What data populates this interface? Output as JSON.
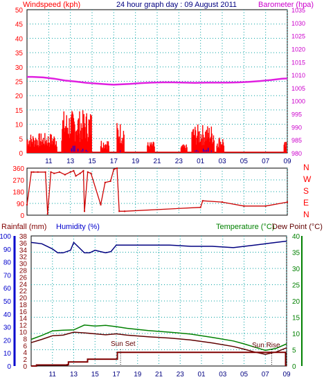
{
  "title": "24 hour graph day : 09 August 2011",
  "colors": {
    "wind": "#ff0000",
    "gust_avg": "#0000ff",
    "gust_green": "#00a000",
    "barometer": "#e020e0",
    "direction": "#cc0000",
    "rain": "#800000",
    "humidity": "#000080",
    "temperature": "#008000",
    "dewpoint": "#600000",
    "grid": "#00a0a0",
    "axis_left": "#ff0000",
    "axis_right": "#cc00cc",
    "humidity_axis": "#0000cc",
    "temp_axis": "#008000"
  },
  "chart_data": [
    {
      "type": "line",
      "name": "wind_barometer",
      "left_label": "Windspeed (kph)",
      "right_label": "Barometer (hpa)",
      "x_ticks": [
        "11",
        "13",
        "15",
        "17",
        "19",
        "21",
        "23",
        "01",
        "03",
        "05",
        "07",
        "09"
      ],
      "left_ticks": [
        "0",
        "5",
        "10",
        "15",
        "20",
        "25",
        "30",
        "35",
        "40",
        "45",
        "50"
      ],
      "right_ticks": [
        "980",
        "985",
        "990",
        "995",
        "1000",
        "1005",
        "1010",
        "1015",
        "1020",
        "1025",
        "1030",
        "1035"
      ],
      "left_range": [
        0,
        50
      ],
      "right_range": [
        980,
        1035
      ],
      "barometer": {
        "x": [
          9.0,
          9.5,
          10.5,
          11.5,
          12.5,
          13.5,
          14.5,
          15.5,
          16.5,
          17.0,
          17.5,
          18.5,
          19.5,
          20.5,
          21.5,
          22.5,
          23.5,
          24.5,
          25.5,
          26.5,
          27.5,
          28.5,
          29.5,
          30.5,
          31.5,
          32.5,
          33.0
        ],
        "values": [
          1009.2,
          1009.2,
          1009.0,
          1008.5,
          1007.8,
          1007.4,
          1006.9,
          1006.6,
          1006.3,
          1006.2,
          1006.3,
          1006.5,
          1006.8,
          1007.0,
          1007.1,
          1007.1,
          1007.0,
          1006.9,
          1007.0,
          1007.0,
          1007.0,
          1007.1,
          1007.3,
          1007.6,
          1008.0,
          1008.5,
          1008.6
        ]
      },
      "wind_bursts": [
        {
          "x": [
            9.0,
            11.8
          ],
          "max": 7
        },
        {
          "x": [
            12.2,
            15.0
          ],
          "max": 15
        },
        {
          "x": [
            15.8,
            16.6
          ],
          "max": 5
        },
        {
          "x": [
            17.3,
            18.0
          ],
          "max": 11
        },
        {
          "x": [
            20.1,
            20.8
          ],
          "max": 4
        },
        {
          "x": [
            23.2,
            23.8
          ],
          "max": 3
        },
        {
          "x": [
            24.2,
            26.3
          ],
          "max": 10
        },
        {
          "x": [
            26.5,
            27.2
          ],
          "max": 6
        },
        {
          "x": [
            32.7,
            32.9
          ],
          "max": 4
        }
      ]
    },
    {
      "type": "scatter",
      "name": "wind_direction",
      "left_ticks": [
        "0",
        "90",
        "180",
        "270",
        "360"
      ],
      "left_range": [
        0,
        360
      ],
      "right_letters": [
        "N",
        "W",
        "S",
        "E",
        "N"
      ],
      "x": [
        9.0,
        9.4,
        9.6,
        10.0,
        10.7,
        10.9,
        11.2,
        11.5,
        12.0,
        12.5,
        13.0,
        13.3,
        13.5,
        13.9,
        14.2,
        14.3,
        14.6,
        14.9,
        15.8,
        16.2,
        16.7,
        17.0,
        17.3,
        17.5,
        18.0,
        25.0,
        25.2,
        27.0,
        29.0,
        31.0,
        33.0
      ],
      "values": [
        80,
        330,
        330,
        330,
        330,
        10,
        330,
        320,
        330,
        310,
        330,
        340,
        300,
        320,
        340,
        30,
        330,
        320,
        80,
        250,
        260,
        350,
        360,
        30,
        30,
        60,
        110,
        100,
        70,
        70,
        100
      ]
    },
    {
      "type": "line",
      "name": "rain_humidity_temperature",
      "left_label": "Rainfall (mm)",
      "humidity_label": "Humidity (%)",
      "right_label": "Temperature (°C)",
      "dewpoint_label": "Dew Point (°C)",
      "rain_ticks": [
        "0",
        "2",
        "4",
        "6",
        "8",
        "10",
        "12",
        "14",
        "16",
        "18",
        "20",
        "22",
        "24",
        "26",
        "28",
        "30",
        "32",
        "34",
        "36",
        "38"
      ],
      "humidity_ticks": [
        "0",
        "10",
        "20",
        "30",
        "40",
        "50",
        "60",
        "70",
        "80",
        "90",
        "100"
      ],
      "temp_ticks": [
        "0",
        "5",
        "10",
        "15",
        "20",
        "25",
        "30",
        "35",
        "40"
      ],
      "temp_range": [
        0,
        40
      ],
      "humidity_range": [
        0,
        100
      ],
      "rain_range": [
        0,
        38
      ],
      "x_ticks": [
        "11",
        "13",
        "15",
        "17",
        "19",
        "21",
        "23",
        "01",
        "03",
        "05",
        "07",
        "09"
      ],
      "humidity": {
        "x": [
          9.0,
          10.0,
          11.0,
          11.5,
          12.0,
          12.7,
          13.0,
          13.5,
          14.0,
          14.5,
          15.0,
          15.5,
          16.0,
          16.5,
          17.0,
          18.0,
          20.0,
          22.0,
          24.0,
          26.0,
          28.0,
          30.0,
          31.0,
          32.0,
          33.0
        ],
        "values": [
          95,
          94,
          90,
          87,
          87,
          89,
          95,
          91,
          87,
          87,
          89,
          88,
          87,
          88,
          93,
          93,
          93,
          93,
          92,
          92,
          91,
          93,
          94,
          95,
          96
        ]
      },
      "temperature": {
        "x": [
          9.0,
          10.0,
          11.0,
          12.0,
          13.0,
          14.0,
          15.0,
          16.0,
          17.0,
          18.0,
          20.0,
          22.0,
          24.0,
          26.0,
          28.0,
          29.0,
          30.0,
          31.0,
          32.0,
          33.0
        ],
        "values": [
          8.2,
          9.4,
          10.8,
          11.0,
          11.1,
          12.6,
          12.3,
          12.5,
          12.1,
          11.6,
          10.9,
          10.4,
          9.8,
          8.8,
          7.7,
          6.8,
          5.8,
          4.8,
          5.4,
          6.8
        ],
        "name": "Temperature (°C)"
      },
      "dewpoint": {
        "x": [
          9.0,
          10.0,
          11.0,
          12.0,
          13.0,
          14.0,
          15.0,
          16.0,
          17.0,
          18.0,
          20.0,
          22.0,
          24.0,
          26.0,
          28.0,
          29.0,
          30.0,
          31.0,
          32.0,
          33.0
        ],
        "values": [
          7.2,
          8.2,
          9.3,
          9.5,
          10.4,
          10.2,
          9.9,
          9.6,
          9.9,
          9.5,
          9.0,
          8.6,
          8.0,
          7.1,
          6.0,
          5.2,
          4.3,
          3.6,
          4.3,
          5.6
        ],
        "name": "Dew Point (°C)"
      },
      "rain_cumulative": {
        "x": [
          9.0,
          9.5,
          12.4,
          12.5,
          14.2,
          14.3,
          17.0,
          17.1,
          32.8,
          32.9,
          33.0
        ],
        "values": [
          0,
          0.3,
          0.4,
          1.2,
          1.2,
          2.0,
          2.0,
          4.0,
          4.0,
          0.2,
          0.2
        ]
      },
      "annotations": [
        {
          "text": "Sun Set",
          "x": 17.5
        },
        {
          "text": "Sun Rise",
          "x": 31.3
        }
      ]
    }
  ]
}
